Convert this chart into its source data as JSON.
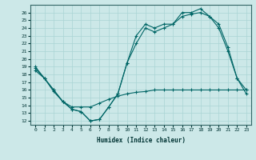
{
  "xlabel": "Humidex (Indice chaleur)",
  "bg_color": "#cce8e8",
  "line_color": "#006666",
  "xlim": [
    -0.5,
    23.5
  ],
  "ylim": [
    11.5,
    27.0
  ],
  "xticks": [
    0,
    1,
    2,
    3,
    4,
    5,
    6,
    7,
    8,
    9,
    10,
    11,
    12,
    13,
    14,
    15,
    16,
    17,
    18,
    19,
    20,
    21,
    22,
    23
  ],
  "yticks": [
    12,
    13,
    14,
    15,
    16,
    17,
    18,
    19,
    20,
    21,
    22,
    23,
    24,
    25,
    26
  ],
  "line1_x": [
    0,
    1,
    2,
    3,
    4,
    5,
    6,
    7,
    8,
    9,
    10,
    11,
    12,
    13,
    14,
    15,
    16,
    17,
    18,
    19,
    20,
    21,
    22,
    23
  ],
  "line1_y": [
    19.0,
    17.5,
    16.0,
    14.5,
    13.5,
    13.2,
    12.0,
    12.2,
    13.8,
    15.5,
    19.5,
    23.0,
    24.5,
    24.0,
    24.5,
    24.5,
    26.0,
    26.0,
    26.5,
    25.5,
    24.5,
    21.5,
    17.5,
    16.0
  ],
  "line2_x": [
    0,
    1,
    2,
    3,
    4,
    5,
    6,
    7,
    8,
    9,
    10,
    11,
    12,
    13,
    14,
    15,
    16,
    17,
    18,
    19,
    20,
    21,
    22,
    23
  ],
  "line2_y": [
    18.8,
    17.5,
    16.0,
    14.5,
    13.5,
    13.2,
    12.0,
    12.2,
    13.8,
    15.5,
    19.5,
    22.0,
    24.0,
    23.5,
    24.0,
    24.5,
    25.5,
    25.8,
    26.0,
    25.5,
    24.0,
    21.0,
    17.5,
    15.5
  ],
  "line3_x": [
    0,
    1,
    2,
    3,
    4,
    5,
    6,
    7,
    8,
    9,
    10,
    11,
    12,
    13,
    14,
    15,
    16,
    17,
    18,
    19,
    20,
    21,
    22,
    23
  ],
  "line3_y": [
    18.5,
    17.5,
    15.8,
    14.5,
    13.8,
    13.8,
    13.8,
    14.3,
    14.8,
    15.2,
    15.5,
    15.7,
    15.8,
    16.0,
    16.0,
    16.0,
    16.0,
    16.0,
    16.0,
    16.0,
    16.0,
    16.0,
    16.0,
    16.0
  ]
}
